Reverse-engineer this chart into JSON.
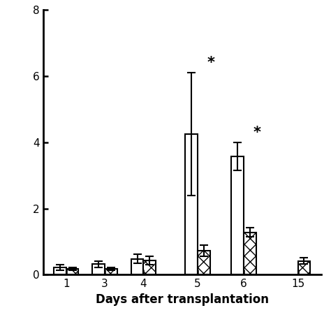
{
  "days": [
    1,
    3,
    4,
    5,
    6,
    15
  ],
  "white_bars": [
    0.22,
    0.32,
    0.48,
    4.25,
    3.58,
    0.0
  ],
  "white_errors": [
    0.08,
    0.09,
    0.14,
    1.85,
    0.42,
    0.0
  ],
  "hatched_bars": [
    0.18,
    0.18,
    0.43,
    0.73,
    1.28,
    0.42
  ],
  "hatched_errors": [
    0.05,
    0.04,
    0.12,
    0.17,
    0.14,
    0.09
  ],
  "ylim": [
    0,
    8
  ],
  "yticks": [
    0,
    2,
    4,
    6,
    8
  ],
  "xlabel": "Days after transplantation",
  "bar_width": 0.32,
  "x_positions": [
    0.5,
    1.5,
    2.5,
    3.9,
    5.1,
    6.5
  ],
  "significant_white_indices": [
    3,
    4
  ],
  "background_color": "#ffffff",
  "xlabel_fontsize": 12,
  "tick_fontsize": 11,
  "spine_linewidth": 2.0,
  "capsize": 4
}
